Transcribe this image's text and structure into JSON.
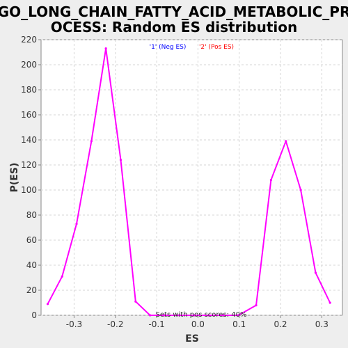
{
  "chart_data": {
    "type": "line",
    "title_line1": "GO_LONG_CHAIN_FATTY_ACID_METABOLIC_PR",
    "title_line2": "OCESS: Random ES distribution",
    "xlabel": "ES",
    "ylabel": "P(ES)",
    "xlim": [
      -0.38,
      0.35
    ],
    "ylim": [
      0,
      220
    ],
    "xticks": [
      -0.3,
      -0.2,
      -0.1,
      0.0,
      0.1,
      0.2,
      0.3
    ],
    "xtick_labels": [
      "-0.3",
      "-0.2",
      "-0.1",
      "0.0",
      "0.1",
      "0.2",
      "0.3"
    ],
    "yticks": [
      0,
      20,
      40,
      60,
      80,
      100,
      120,
      140,
      160,
      180,
      200,
      220
    ],
    "ytick_labels": [
      "0",
      "20",
      "40",
      "60",
      "80",
      "100",
      "120",
      "140",
      "160",
      "180",
      "200",
      "220"
    ],
    "grid": true,
    "legend_placement": "top-center",
    "legend": [
      {
        "label": "'1' (Neg ES)",
        "color": "#0000ff"
      },
      {
        "label": "'2' (Pos ES)",
        "color": "#ff0000"
      }
    ],
    "series": [
      {
        "color": "#ff00ff",
        "x": [
          -0.364,
          -0.329,
          -0.294,
          -0.258,
          -0.223,
          -0.187,
          -0.151,
          -0.116,
          -0.08,
          -0.045,
          -0.009,
          0.026,
          0.062,
          0.098,
          0.141,
          0.177,
          0.213,
          0.249,
          0.285,
          0.32
        ],
        "y": [
          9,
          31,
          73,
          139,
          213,
          124,
          11,
          0,
          0,
          0,
          0,
          0,
          0,
          0,
          8,
          108,
          139,
          100,
          34,
          10
        ]
      }
    ],
    "annotation": "Sets with pos scores: 40%"
  },
  "colors": {
    "background": "#eeeeee",
    "plot_background": "#ffffff",
    "line": "#ff00ff"
  }
}
